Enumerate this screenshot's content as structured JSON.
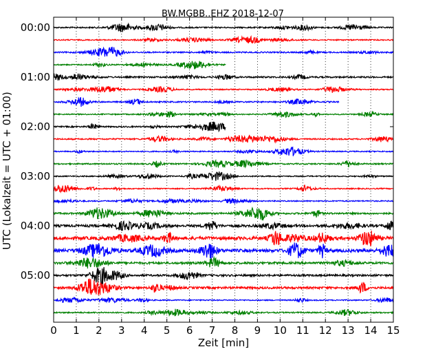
{
  "chart_data": {
    "type": "line",
    "title": "BW.MGBB..EHZ 2018-12-07",
    "xlabel": "Zeit  [min]",
    "ylabel": "UTC (Lokalzeit = UTC + 01:00)",
    "xlim": [
      0,
      15
    ],
    "x_ticks": [
      "0",
      "1",
      "2",
      "3",
      "4",
      "5",
      "6",
      "7",
      "8",
      "9",
      "10",
      "11",
      "12",
      "13",
      "14",
      "15"
    ],
    "y_tick_labels": [
      "00:00",
      "01:00",
      "02:00",
      "03:00",
      "04:00",
      "05:00"
    ],
    "y_tick_rows": [
      0,
      4,
      8,
      12,
      16,
      20
    ],
    "minutes_per_trace": 15,
    "trace_count": 24,
    "trace_colors": [
      "#000000",
      "#ff0000",
      "#0000ff",
      "#008000"
    ],
    "grid": "vertical dotted lines at each minute",
    "traces": [
      {
        "start": "00:00",
        "color": "#000000",
        "amplitude": 0.3,
        "end_min": 15
      },
      {
        "start": "00:15",
        "color": "#ff0000",
        "amplitude": 0.25,
        "end_min": 15
      },
      {
        "start": "00:30",
        "color": "#0000ff",
        "amplitude": 0.3,
        "end_min": 15
      },
      {
        "start": "00:45",
        "color": "#008000",
        "amplitude": 0.25,
        "end_min": 7.6
      },
      {
        "start": "01:00",
        "color": "#000000",
        "amplitude": 0.35,
        "end_min": 15
      },
      {
        "start": "01:15",
        "color": "#ff0000",
        "amplitude": 0.25,
        "end_min": 15
      },
      {
        "start": "01:30",
        "color": "#0000ff",
        "amplitude": 0.3,
        "end_min": 12.6
      },
      {
        "start": "01:45",
        "color": "#008000",
        "amplitude": 0.25,
        "end_min": 15
      },
      {
        "start": "02:00",
        "color": "#000000",
        "amplitude": 0.3,
        "end_min": 7.6
      },
      {
        "start": "02:15",
        "color": "#ff0000",
        "amplitude": 0.3,
        "end_min": 15
      },
      {
        "start": "02:30",
        "color": "#0000ff",
        "amplitude": 0.25,
        "end_min": 15
      },
      {
        "start": "02:45",
        "color": "#008000",
        "amplitude": 0.3,
        "end_min": 15
      },
      {
        "start": "03:00",
        "color": "#000000",
        "amplitude": 0.25,
        "end_min": 15
      },
      {
        "start": "03:15",
        "color": "#ff0000",
        "amplitude": 0.25,
        "end_min": 15
      },
      {
        "start": "03:30",
        "color": "#0000ff",
        "amplitude": 0.25,
        "end_min": 15
      },
      {
        "start": "03:45",
        "color": "#008000",
        "amplitude": 0.4,
        "end_min": 15
      },
      {
        "start": "04:00",
        "color": "#000000",
        "amplitude": 0.55,
        "end_min": 15
      },
      {
        "start": "04:15",
        "color": "#ff0000",
        "amplitude": 0.75,
        "end_min": 15
      },
      {
        "start": "04:30",
        "color": "#0000ff",
        "amplitude": 0.7,
        "end_min": 15
      },
      {
        "start": "04:45",
        "color": "#008000",
        "amplitude": 0.5,
        "end_min": 15
      },
      {
        "start": "05:00",
        "color": "#000000",
        "amplitude": 0.45,
        "end_min": 15
      },
      {
        "start": "05:15",
        "color": "#ff0000",
        "amplitude": 0.5,
        "end_min": 15
      },
      {
        "start": "05:30",
        "color": "#0000ff",
        "amplitude": 0.25,
        "end_min": 15
      },
      {
        "start": "05:45",
        "color": "#008000",
        "amplitude": 0.3,
        "end_min": 15
      }
    ]
  }
}
